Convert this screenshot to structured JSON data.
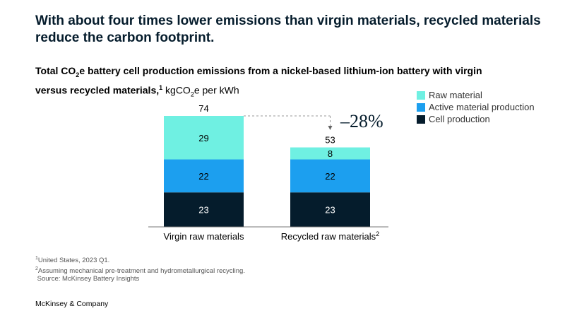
{
  "headline": "With about four times lower emissions than virgin materials, recycled materials reduce the carbon footprint.",
  "subtitle": {
    "part1": "Total CO",
    "sub": "2",
    "part2": "e battery cell production emissions from a nickel-based lithium-ion battery with virgin versus recycled  materials,",
    "sup": "1",
    "unit_prefix": " kgCO",
    "unit_sub": "2",
    "unit_suffix": "e per kWh"
  },
  "legend": [
    {
      "label": "Raw material",
      "color": "#6ff0e2"
    },
    {
      "label": "Active material production",
      "color": "#1c9fef"
    },
    {
      "label": "Cell production",
      "color": "#051c2c"
    }
  ],
  "chart_data": {
    "type": "bar",
    "stacked": true,
    "categories": [
      "Virgin raw materials",
      "Recycled raw materials"
    ],
    "category_superscripts": [
      "",
      "2"
    ],
    "series": [
      {
        "name": "Cell production",
        "values": [
          23,
          23
        ],
        "color": "#051c2c"
      },
      {
        "name": "Active material production",
        "values": [
          22,
          22
        ],
        "color": "#1c9fef"
      },
      {
        "name": "Raw material",
        "values": [
          29,
          8
        ],
        "color": "#6ff0e2"
      }
    ],
    "totals": [
      74,
      53
    ],
    "annotation": "–28%",
    "ylim": [
      0,
      74
    ]
  },
  "footnotes": [
    {
      "sup": "1",
      "text": "United States, 2023 Q1."
    },
    {
      "sup": "2",
      "text": "Assuming mechanical pre-treatment and hydrometallurgical recycling."
    },
    {
      "sup": "",
      "text": " Source: McKinsey Battery Insights"
    }
  ],
  "brand": "McKinsey & Company"
}
